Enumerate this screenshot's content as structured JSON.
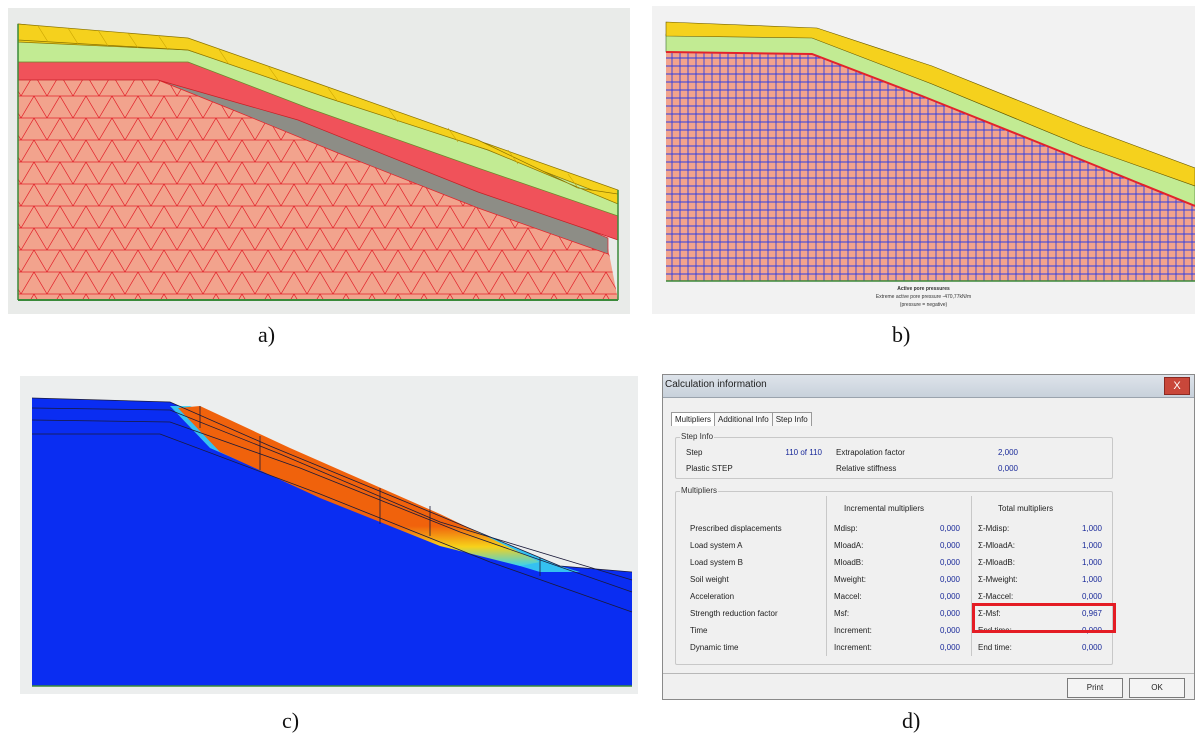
{
  "captions": {
    "a": "a)",
    "b": "b)",
    "c": "c)",
    "d": "d)"
  },
  "panel_b": {
    "title": "Active pore pressures",
    "subtitle": "Extreme active pore pressure -470,77kN/m",
    "note": "(pressure = negative)"
  },
  "dialog": {
    "title": "Calculation information",
    "close": "X",
    "tabs": [
      "Multipliers",
      "Additional Info",
      "Step Info"
    ],
    "step_info": {
      "group_label": "Step Info",
      "step_label": "Step",
      "step_value": "110 of 110",
      "extrapolation_label": "Extrapolation factor",
      "extrapolation_value": "2,000",
      "plastic_label": "Plastic STEP",
      "stiffness_label": "Relative stiffness",
      "stiffness_value": "0,000"
    },
    "multipliers": {
      "group_label": "Multipliers",
      "incremental_header": "Incremental multipliers",
      "total_header": "Total multipliers",
      "rows": [
        {
          "name": "Prescribed displacements",
          "inc_label": "Mdisp:",
          "inc_value": "0,000",
          "tot_label": "Σ-Mdisp:",
          "tot_value": "1,000"
        },
        {
          "name": "Load system A",
          "inc_label": "MloadA:",
          "inc_value": "0,000",
          "tot_label": "Σ-MloadA:",
          "tot_value": "1,000"
        },
        {
          "name": "Load system B",
          "inc_label": "MloadB:",
          "inc_value": "0,000",
          "tot_label": "Σ-MloadB:",
          "tot_value": "1,000"
        },
        {
          "name": "Soil weight",
          "inc_label": "Mweight:",
          "inc_value": "0,000",
          "tot_label": "Σ-Mweight:",
          "tot_value": "1,000"
        },
        {
          "name": "Acceleration",
          "inc_label": "Maccel:",
          "inc_value": "0,000",
          "tot_label": "Σ-Maccel:",
          "tot_value": "0,000"
        },
        {
          "name": "Strength reduction factor",
          "inc_label": "Msf:",
          "inc_value": "0,000",
          "tot_label": "Σ-Msf:",
          "tot_value": "0,967"
        },
        {
          "name": "Time",
          "inc_label": "Increment:",
          "inc_value": "0,000",
          "tot_label": "End time:",
          "tot_value": "0,000"
        },
        {
          "name": "Dynamic time",
          "inc_label": "Increment:",
          "inc_value": "0,000",
          "tot_label": "End time:",
          "tot_value": "0,000"
        }
      ]
    },
    "buttons": {
      "print": "Print",
      "ok": "OK"
    }
  },
  "colors": {
    "yellow": "#f5d11d",
    "green": "#c2eb93",
    "red": "#f0525a",
    "salmon": "#f2a38d",
    "gray": "#8d8d86",
    "mesh_red": "#e2232b",
    "blue": "#0a2df2",
    "orange": "#f0620c",
    "highlight": "#e41c24"
  }
}
